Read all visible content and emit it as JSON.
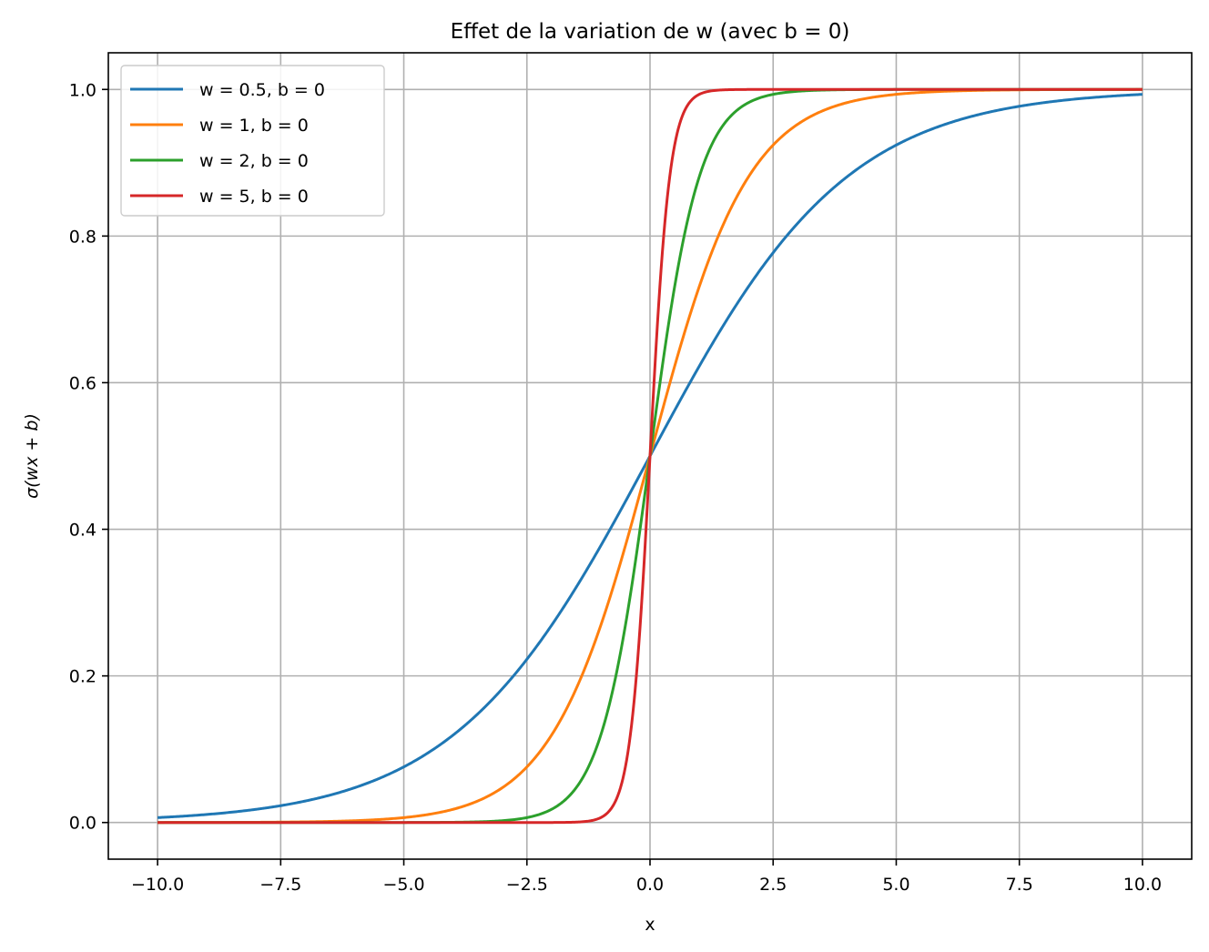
{
  "chart_data": {
    "type": "line",
    "title": "Effet de la variation de w (avec b = 0)",
    "xlabel": "x",
    "ylabel": "σ(wx + b)",
    "xlim": [
      -11,
      11
    ],
    "ylim": [
      -0.05,
      1.05
    ],
    "x_range": [
      -10,
      10
    ],
    "xticks": [
      -10.0,
      -7.5,
      -5.0,
      -2.5,
      0.0,
      2.5,
      5.0,
      7.5,
      10.0
    ],
    "xtick_labels": [
      "−10.0",
      "−7.5",
      "−5.0",
      "−2.5",
      "0.0",
      "2.5",
      "5.0",
      "7.5",
      "10.0"
    ],
    "yticks": [
      0.0,
      0.2,
      0.4,
      0.6,
      0.8,
      1.0
    ],
    "ytick_labels": [
      "0.0",
      "0.2",
      "0.4",
      "0.6",
      "0.8",
      "1.0"
    ],
    "grid": true,
    "legend_position": "upper-left",
    "series": [
      {
        "name": "w = 0.5, b = 0",
        "w": 0.5,
        "b": 0,
        "color": "#1f77b4"
      },
      {
        "name": "w = 1, b = 0",
        "w": 1,
        "b": 0,
        "color": "#ff7f0e"
      },
      {
        "name": "w = 2, b = 0",
        "w": 2,
        "b": 0,
        "color": "#2ca02c"
      },
      {
        "name": "w = 5, b = 0",
        "w": 5,
        "b": 0,
        "color": "#d62728"
      }
    ]
  }
}
